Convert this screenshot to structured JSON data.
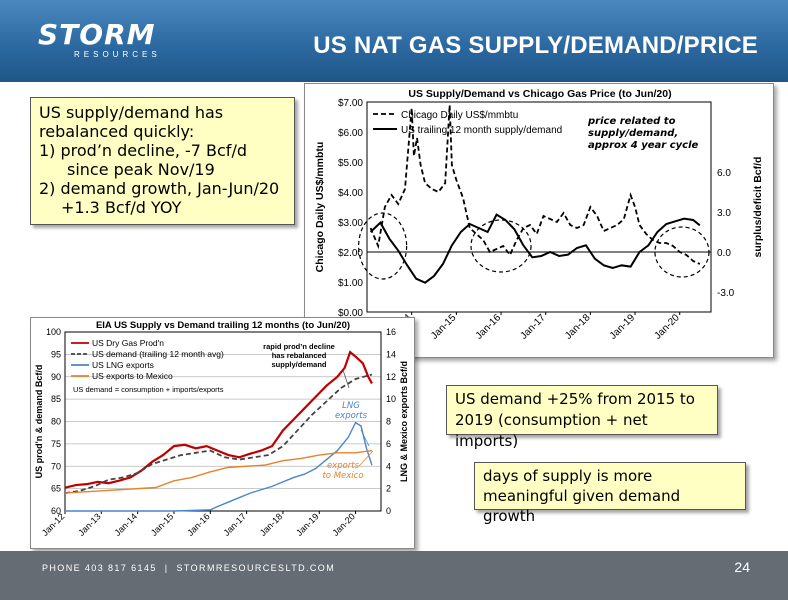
{
  "header": {
    "logo_main": "STORM",
    "logo_sub": "RESOURCES",
    "title": "US NAT GAS SUPPLY/DEMAND/PRICE"
  },
  "callouts": {
    "supply_demand": {
      "lines": [
        "US supply/demand has",
        "rebalanced quickly:",
        "1) prod’n decline, -7 Bcf/d",
        "since peak Nov/19",
        "2) demand growth, Jan-Jun/20",
        "+1.3 Bcf/d YOY"
      ]
    },
    "demand_growth": "US demand +25% from 2015 to 2019 (consumption + net imports)",
    "days_supply": "days of supply is more meaningful given demand growth"
  },
  "footer": {
    "phone": "PHONE 403 817 6145",
    "website": "STORMRESOURCESLTD.COM",
    "page": "24"
  },
  "colors": {
    "header_blue": "#2b679f",
    "callout_fill": "#ffffc4",
    "prod_red": "#c00000",
    "lng_blue": "#4a86c8",
    "mexico_orange": "#e8822a"
  },
  "chart_data": [
    {
      "type": "line",
      "title": "US Supply/Demand vs Chicago Gas Price (to Jun/20)",
      "ylabel": "Chicago Daily US$/mmbtu",
      "y2label": "surplus/deficit Bcf/d",
      "x_ticks": [
        "Jan-14",
        "Jan-15",
        "Jan-16",
        "Jan-17",
        "Jan-18",
        "Jan-19",
        "Jan-20"
      ],
      "y_ticks": [
        "$0.00",
        "$1.00",
        "$2.00",
        "$3.00",
        "$4.00",
        "$5.00",
        "$6.00",
        "$7.00"
      ],
      "y2_ticks": [
        "-3.0",
        "0.0",
        "3.0",
        "6.0"
      ],
      "ylim": [
        0,
        7
      ],
      "y2lim": [
        -4.5,
        11.25
      ],
      "xlim": [
        2013.0,
        2020.7
      ],
      "annotation": "price related to supply/demand, approx 4 year cycle",
      "legend_position": "top-left",
      "series": [
        {
          "name": "Chicago Daily US$/mmbtu",
          "style": "dashed",
          "axis": "left",
          "x": [
            2013.08,
            2013.25,
            2013.4,
            2013.55,
            2013.7,
            2013.85,
            2014.0,
            2014.05,
            2014.12,
            2014.2,
            2014.3,
            2014.45,
            2014.6,
            2014.75,
            2014.85,
            2014.9,
            2015.0,
            2015.15,
            2015.3,
            2015.45,
            2015.6,
            2015.75,
            2015.9,
            2016.05,
            2016.2,
            2016.35,
            2016.5,
            2016.65,
            2016.8,
            2016.95,
            2017.1,
            2017.25,
            2017.4,
            2017.55,
            2017.7,
            2017.85,
            2018.0,
            2018.15,
            2018.3,
            2018.45,
            2018.6,
            2018.75,
            2018.9,
            2019.0,
            2019.1,
            2019.25,
            2019.4,
            2019.55,
            2019.7,
            2019.85,
            2020.0,
            2020.15,
            2020.3,
            2020.45
          ],
          "y": [
            2.8,
            2.2,
            3.5,
            3.9,
            3.6,
            4.1,
            6.8,
            5.2,
            5.8,
            4.9,
            4.3,
            4.1,
            4.0,
            4.3,
            6.9,
            4.9,
            4.4,
            3.8,
            2.8,
            2.6,
            2.4,
            2.0,
            2.1,
            2.2,
            1.9,
            2.4,
            2.8,
            2.9,
            2.6,
            3.2,
            3.1,
            3.0,
            3.3,
            2.9,
            2.8,
            2.9,
            3.5,
            3.2,
            2.7,
            2.8,
            2.9,
            3.1,
            3.9,
            3.5,
            2.9,
            2.6,
            2.4,
            2.3,
            2.3,
            2.2,
            2.0,
            1.9,
            1.7,
            1.6
          ]
        },
        {
          "name": "US trailing 12 month supply/demand",
          "style": "solid",
          "axis": "right",
          "x": [
            2013.08,
            2013.3,
            2013.5,
            2013.7,
            2013.9,
            2014.1,
            2014.3,
            2014.5,
            2014.7,
            2014.9,
            2015.1,
            2015.3,
            2015.5,
            2015.7,
            2015.9,
            2016.1,
            2016.3,
            2016.5,
            2016.7,
            2016.9,
            2017.1,
            2017.3,
            2017.5,
            2017.7,
            2017.9,
            2018.1,
            2018.3,
            2018.5,
            2018.7,
            2018.9,
            2019.1,
            2019.3,
            2019.5,
            2019.7,
            2019.9,
            2020.1,
            2020.3,
            2020.45
          ],
          "y": [
            1.5,
            2.2,
            1.0,
            0.1,
            -1.0,
            -2.0,
            -2.3,
            -1.8,
            -0.9,
            0.5,
            1.5,
            2.1,
            1.8,
            1.5,
            2.8,
            2.4,
            1.7,
            0.5,
            -0.4,
            -0.3,
            0.0,
            -0.3,
            -0.2,
            0.3,
            0.5,
            -0.5,
            -1.0,
            -1.2,
            -1.0,
            -1.1,
            0.0,
            0.5,
            1.5,
            2.1,
            2.3,
            2.5,
            2.4,
            2.0
          ]
        }
      ]
    },
    {
      "type": "line",
      "title": "EIA US Supply vs Demand trailing 12 months (to Jun/20)",
      "ylabel": "US prod'n & demand Bcf/d",
      "y2label": "LNG & Mexico exports Bcf/d",
      "x_ticks": [
        "Jan-12",
        "Jan-13",
        "Jan-14",
        "Jan-15",
        "Jan-16",
        "Jan-17",
        "Jan-18",
        "Jan-19",
        "Jan-20"
      ],
      "y_ticks": [
        "60",
        "65",
        "70",
        "75",
        "80",
        "85",
        "90",
        "95",
        "100"
      ],
      "y2_ticks": [
        "0",
        "2",
        "4",
        "6",
        "8",
        "10",
        "12",
        "14",
        "16"
      ],
      "ylim": [
        60,
        100
      ],
      "y2lim": [
        0,
        16
      ],
      "xlim": [
        2012.0,
        2020.7
      ],
      "legend_position": "top-left",
      "legend_note": "US demand = consumption + imports/exports",
      "annotations": [
        "rapid prod'n decline has rebalanced supply/demand",
        "LNG exports",
        "exports to Mexico"
      ],
      "series": [
        {
          "name": "US Dry Gas Prod'n",
          "axis": "left",
          "x": [
            2012.0,
            2012.3,
            2012.6,
            2012.9,
            2013.2,
            2013.5,
            2013.8,
            2014.1,
            2014.4,
            2014.7,
            2015.0,
            2015.3,
            2015.6,
            2015.9,
            2016.2,
            2016.5,
            2016.8,
            2017.1,
            2017.4,
            2017.7,
            2018.0,
            2018.3,
            2018.6,
            2018.9,
            2019.2,
            2019.5,
            2019.7,
            2019.85,
            2020.0,
            2020.2,
            2020.35,
            2020.45
          ],
          "y": [
            65.2,
            65.8,
            66.0,
            66.5,
            66.2,
            66.8,
            67.5,
            69.0,
            71.0,
            72.5,
            74.5,
            74.8,
            74.0,
            74.5,
            73.5,
            72.5,
            72.0,
            72.8,
            73.5,
            74.5,
            78.0,
            80.5,
            83.0,
            85.5,
            88.0,
            90.0,
            92.0,
            95.5,
            94.5,
            93.0,
            90.0,
            88.5
          ]
        },
        {
          "name": "US demand (trailing 12 month avg)",
          "axis": "left",
          "style": "dashed",
          "x": [
            2012.0,
            2012.4,
            2012.8,
            2013.2,
            2013.6,
            2014.0,
            2014.4,
            2014.8,
            2015.2,
            2015.6,
            2016.0,
            2016.4,
            2016.8,
            2017.2,
            2017.6,
            2018.0,
            2018.4,
            2018.8,
            2019.2,
            2019.6,
            2020.0,
            2020.45
          ],
          "y": [
            64.0,
            64.5,
            65.5,
            67.0,
            67.5,
            68.5,
            70.5,
            71.5,
            72.5,
            73.0,
            73.5,
            72.0,
            71.5,
            72.0,
            72.5,
            74.5,
            78.0,
            81.5,
            84.5,
            87.5,
            89.5,
            90.5
          ]
        },
        {
          "name": "US LNG exports",
          "axis": "right",
          "x": [
            2012.0,
            2015.0,
            2016.0,
            2016.2,
            2016.5,
            2016.8,
            2017.1,
            2017.4,
            2017.7,
            2018.0,
            2018.3,
            2018.6,
            2018.9,
            2019.2,
            2019.5,
            2019.8,
            2020.0,
            2020.15,
            2020.3,
            2020.45
          ],
          "y": [
            0.0,
            0.0,
            0.1,
            0.4,
            0.8,
            1.2,
            1.6,
            1.9,
            2.2,
            2.6,
            3.0,
            3.3,
            3.8,
            4.6,
            5.4,
            6.6,
            7.9,
            7.6,
            5.6,
            4.1
          ]
        },
        {
          "name": "US exports to Mexico",
          "axis": "right",
          "x": [
            2012.0,
            2012.5,
            2013.0,
            2013.5,
            2014.0,
            2014.5,
            2015.0,
            2015.5,
            2016.0,
            2016.5,
            2017.0,
            2017.5,
            2018.0,
            2018.5,
            2019.0,
            2019.5,
            2020.0,
            2020.45
          ],
          "y": [
            1.6,
            1.7,
            1.8,
            1.9,
            2.0,
            2.1,
            2.7,
            3.0,
            3.5,
            3.9,
            4.0,
            4.1,
            4.5,
            4.7,
            5.0,
            5.2,
            5.2,
            5.4
          ]
        }
      ]
    }
  ]
}
